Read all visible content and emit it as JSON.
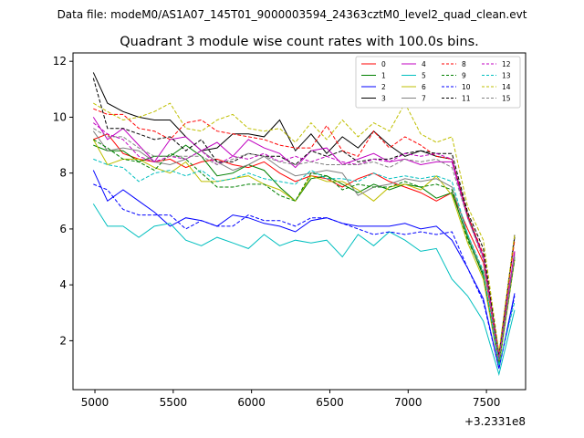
{
  "chart_data": {
    "type": "line",
    "suptitle": "Data file: modeM0/AS1A07_145T01_9000003594_24363cztM0_level2_quad_clean.evt",
    "title": "Quadrant 3 module wise count rates with 100.0s bins.",
    "xlabel": "",
    "ylabel": "",
    "x_offset_label": "+3.2331e8",
    "xlim": [
      4860,
      7750
    ],
    "ylim": [
      0.25,
      12.3
    ],
    "x_ticks": [
      5000,
      5500,
      6000,
      6500,
      7000,
      7500
    ],
    "y_ticks": [
      2,
      4,
      6,
      8,
      10,
      12
    ],
    "legend_position": "upper-right",
    "x": [
      4990,
      5080,
      5180,
      5280,
      5380,
      5480,
      5580,
      5680,
      5780,
      5880,
      5980,
      6080,
      6180,
      6280,
      6380,
      6480,
      6580,
      6680,
      6780,
      6880,
      6980,
      7080,
      7180,
      7280,
      7380,
      7480,
      7580,
      7680
    ],
    "series": [
      {
        "name": "0",
        "color": "#ff0000",
        "dash": "solid",
        "values": [
          9.2,
          9.4,
          8.7,
          8.5,
          8.4,
          8.5,
          8.2,
          8.4,
          8.5,
          8.3,
          8.2,
          8.4,
          8.0,
          7.7,
          7.9,
          7.8,
          7.5,
          7.8,
          8.0,
          7.7,
          7.5,
          7.3,
          7.0,
          7.3,
          6.0,
          4.8,
          1.3,
          5.2
        ]
      },
      {
        "name": "1",
        "color": "#008000",
        "dash": "solid",
        "values": [
          9.0,
          8.8,
          8.8,
          8.4,
          8.6,
          8.6,
          9.0,
          8.6,
          7.9,
          8.0,
          8.3,
          8.1,
          7.5,
          7.0,
          7.8,
          7.9,
          7.6,
          7.3,
          7.6,
          7.4,
          7.6,
          7.5,
          7.1,
          7.3,
          5.7,
          4.3,
          1.1,
          5.0
        ]
      },
      {
        "name": "2",
        "color": "#0000ff",
        "dash": "solid",
        "values": [
          8.1,
          7.0,
          7.4,
          7.0,
          6.6,
          6.1,
          6.4,
          6.3,
          6.1,
          6.5,
          6.4,
          6.2,
          6.1,
          5.9,
          6.3,
          6.4,
          6.2,
          6.1,
          6.1,
          6.1,
          6.2,
          6.0,
          6.1,
          5.6,
          4.6,
          3.5,
          1.0,
          3.7
        ]
      },
      {
        "name": "3",
        "color": "#000000",
        "dash": "solid",
        "values": [
          11.6,
          10.5,
          10.2,
          10.0,
          9.9,
          9.9,
          9.3,
          8.8,
          8.9,
          9.4,
          9.4,
          9.3,
          9.9,
          8.8,
          9.4,
          8.7,
          9.3,
          8.9,
          9.5,
          9.0,
          8.6,
          8.8,
          8.6,
          8.5,
          6.5,
          5.0,
          1.5,
          5.7
        ]
      },
      {
        "name": "4",
        "color": "#c000c0",
        "dash": "solid",
        "values": [
          10.0,
          9.2,
          9.6,
          9.0,
          8.4,
          9.2,
          9.3,
          8.8,
          9.1,
          8.6,
          9.2,
          8.9,
          8.7,
          8.2,
          8.8,
          8.9,
          8.3,
          8.5,
          8.7,
          8.4,
          8.5,
          8.3,
          8.4,
          8.4,
          6.4,
          5.0,
          1.4,
          5.2
        ]
      },
      {
        "name": "5",
        "color": "#00bfbf",
        "dash": "solid",
        "values": [
          6.9,
          6.1,
          6.1,
          5.7,
          6.1,
          6.2,
          5.6,
          5.4,
          5.7,
          5.5,
          5.3,
          5.8,
          5.4,
          5.6,
          5.5,
          5.6,
          5.0,
          5.8,
          5.4,
          5.9,
          5.6,
          5.2,
          5.3,
          4.2,
          3.6,
          2.7,
          0.8,
          3.1
        ]
      },
      {
        "name": "6",
        "color": "#bfbf00",
        "dash": "solid",
        "values": [
          9.2,
          8.3,
          8.5,
          8.5,
          8.2,
          8.0,
          8.4,
          7.7,
          7.7,
          7.8,
          7.9,
          7.6,
          7.4,
          7.0,
          7.9,
          7.7,
          7.7,
          7.4,
          7.0,
          7.5,
          7.6,
          7.4,
          7.9,
          7.2,
          5.5,
          4.2,
          1.1,
          4.9
        ]
      },
      {
        "name": "7",
        "color": "#808080",
        "dash": "solid",
        "values": [
          9.5,
          8.8,
          8.9,
          8.8,
          8.4,
          8.3,
          8.5,
          8.8,
          8.4,
          8.1,
          8.3,
          8.6,
          8.2,
          7.9,
          8.0,
          8.1,
          8.0,
          7.2,
          7.5,
          7.6,
          7.8,
          7.7,
          7.8,
          7.5,
          5.8,
          4.4,
          1.2,
          5.1
        ]
      },
      {
        "name": "8",
        "color": "#ff0000",
        "dash": "dashed",
        "values": [
          10.3,
          10.1,
          10.1,
          9.6,
          9.5,
          9.2,
          9.8,
          9.9,
          9.5,
          9.4,
          9.3,
          9.2,
          9.0,
          8.9,
          8.9,
          9.7,
          8.8,
          8.6,
          9.5,
          8.9,
          9.3,
          9.0,
          8.6,
          8.5,
          6.5,
          5.1,
          1.5,
          5.6
        ]
      },
      {
        "name": "9",
        "color": "#008000",
        "dash": "dashed",
        "values": [
          9.2,
          8.9,
          8.5,
          8.4,
          8.1,
          8.7,
          8.5,
          8.0,
          7.5,
          7.5,
          7.6,
          7.6,
          7.2,
          7.0,
          8.0,
          7.9,
          7.4,
          7.6,
          7.5,
          7.5,
          7.7,
          7.5,
          7.6,
          7.4,
          5.6,
          4.4,
          1.2,
          4.9
        ]
      },
      {
        "name": "10",
        "color": "#0000ff",
        "dash": "dashed",
        "values": [
          7.6,
          7.4,
          6.7,
          6.5,
          6.5,
          6.5,
          6.0,
          6.3,
          6.1,
          6.1,
          6.5,
          6.3,
          6.3,
          6.1,
          6.4,
          6.4,
          6.2,
          6.0,
          5.8,
          5.9,
          5.8,
          5.9,
          5.8,
          5.9,
          4.6,
          3.4,
          1.0,
          3.6
        ]
      },
      {
        "name": "11",
        "color": "#000000",
        "dash": "dashed",
        "values": [
          11.4,
          9.6,
          9.6,
          9.4,
          9.2,
          9.3,
          8.8,
          9.2,
          8.4,
          8.4,
          8.7,
          8.6,
          8.6,
          8.3,
          8.8,
          8.6,
          8.8,
          8.4,
          8.5,
          8.5,
          8.7,
          8.8,
          8.7,
          8.7,
          6.6,
          5.3,
          1.5,
          5.8
        ]
      },
      {
        "name": "12",
        "color": "#c000c0",
        "dash": "dashed",
        "values": [
          9.8,
          9.4,
          9.2,
          8.6,
          8.4,
          8.6,
          8.5,
          8.8,
          8.3,
          8.6,
          8.5,
          8.7,
          8.4,
          8.6,
          8.4,
          8.6,
          8.4,
          8.3,
          8.5,
          8.4,
          8.7,
          8.6,
          8.7,
          8.5,
          6.4,
          5.0,
          1.4,
          5.2
        ]
      },
      {
        "name": "13",
        "color": "#00bfbf",
        "dash": "dashed",
        "values": [
          8.5,
          8.3,
          8.2,
          7.7,
          8.0,
          8.1,
          7.9,
          8.1,
          7.7,
          7.8,
          8.0,
          7.8,
          7.7,
          7.6,
          8.1,
          7.8,
          7.8,
          7.7,
          8.0,
          7.8,
          7.9,
          7.8,
          7.9,
          7.7,
          5.8,
          4.5,
          1.1,
          3.4
        ]
      },
      {
        "name": "14",
        "color": "#bfbf00",
        "dash": "dashed",
        "values": [
          10.5,
          10.2,
          9.9,
          10.0,
          10.2,
          10.5,
          9.6,
          9.5,
          9.9,
          10.1,
          9.6,
          9.5,
          9.6,
          9.1,
          9.8,
          9.2,
          9.9,
          9.3,
          9.8,
          9.5,
          10.5,
          9.4,
          9.1,
          9.3,
          6.8,
          5.6,
          1.6,
          5.8
        ]
      },
      {
        "name": "15",
        "color": "#808080",
        "dash": "dashed",
        "values": [
          9.6,
          9.3,
          9.3,
          8.9,
          8.6,
          8.6,
          8.6,
          8.6,
          8.3,
          8.5,
          8.7,
          8.6,
          8.4,
          8.3,
          8.4,
          8.3,
          8.3,
          8.3,
          8.4,
          8.2,
          8.5,
          8.4,
          8.5,
          8.2,
          6.4,
          4.9,
          1.3,
          5.0
        ]
      }
    ]
  }
}
